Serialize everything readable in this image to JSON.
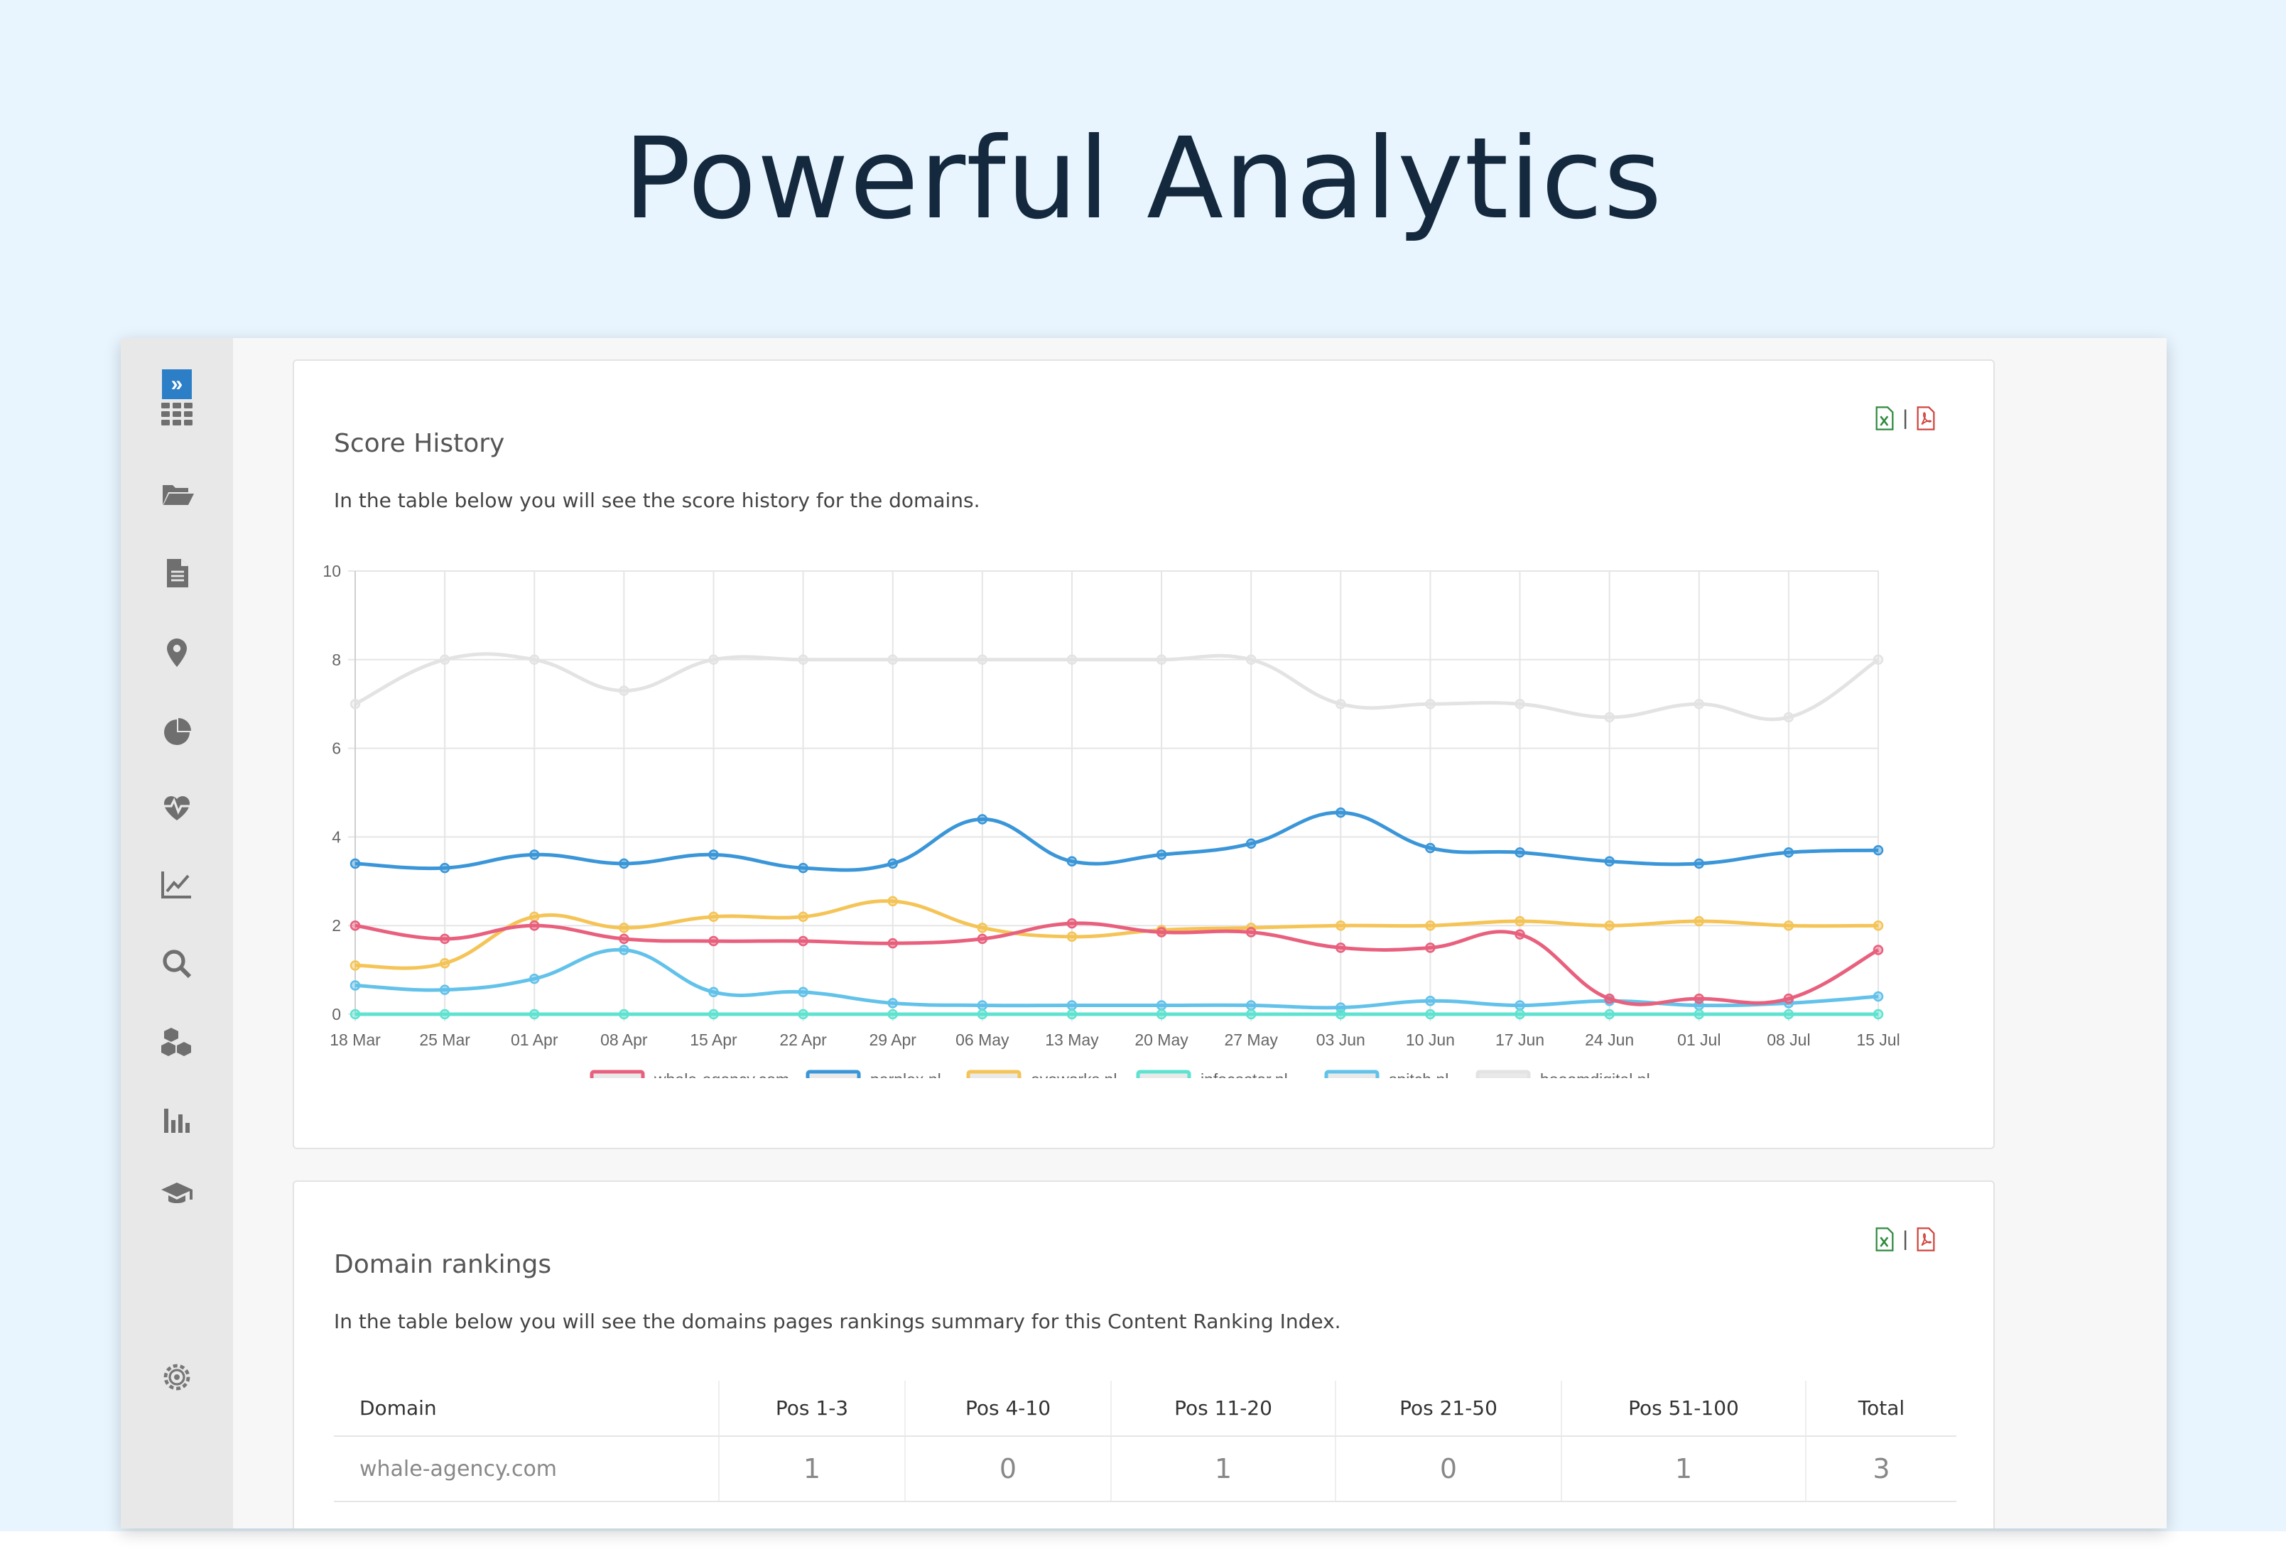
{
  "hero": {
    "title": "Powerful Analytics"
  },
  "sidebar": {
    "items": [
      "expand-icon",
      "dashboard-grid-icon",
      "folder-open-icon",
      "document-icon",
      "location-pin-icon",
      "pie-chart-icon",
      "heartbeat-icon",
      "line-trend-icon",
      "search-icon",
      "cubes-icon",
      "bar-chart-icon",
      "graduation-cap-icon",
      "settings-gear-icon"
    ]
  },
  "score_history": {
    "title": "Score History",
    "description": "In the table below you will see the score history for the domains.",
    "export_separator": "|"
  },
  "chart_data": {
    "type": "line",
    "title": "Score History",
    "xlabel": "",
    "ylabel": "",
    "ylim": [
      0,
      10
    ],
    "yticks": [
      "0",
      "2",
      "4",
      "6",
      "8",
      "10"
    ],
    "grid": true,
    "legend_position": "bottom",
    "categories": [
      "18 Mar",
      "25 Mar",
      "01 Apr",
      "08 Apr",
      "15 Apr",
      "22 Apr",
      "29 Apr",
      "06 May",
      "13 May",
      "20 May",
      "27 May",
      "03 Jun",
      "10 Jun",
      "17 Jun",
      "24 Jun",
      "01 Jul",
      "08 Jul",
      "15 Jul"
    ],
    "series": [
      {
        "name": "whale-agency.com",
        "color": "#e8607d",
        "values": [
          2.0,
          1.7,
          2.0,
          1.7,
          1.65,
          1.65,
          1.6,
          1.7,
          2.05,
          1.85,
          1.85,
          1.5,
          1.5,
          1.8,
          0.35,
          0.35,
          0.35,
          1.45
        ]
      },
      {
        "name": "perplex.nl",
        "color": "#3a96d8",
        "values": [
          3.4,
          3.3,
          3.6,
          3.4,
          3.6,
          3.3,
          3.4,
          4.4,
          3.45,
          3.6,
          3.85,
          4.55,
          3.75,
          3.65,
          3.45,
          3.4,
          3.65,
          3.7
        ]
      },
      {
        "name": "evoworks.nl",
        "color": "#f5c457",
        "values": [
          1.1,
          1.15,
          2.2,
          1.95,
          2.2,
          2.2,
          2.55,
          1.95,
          1.75,
          1.9,
          1.95,
          2.0,
          2.0,
          2.1,
          2.0,
          2.1,
          2.0,
          2.0
        ]
      },
      {
        "name": "infocaster.nl",
        "color": "#5fe3d0",
        "values": [
          0,
          0,
          0,
          0,
          0,
          0,
          0,
          0,
          0,
          0,
          0,
          0,
          0,
          0,
          0,
          0,
          0,
          0
        ]
      },
      {
        "name": "spitch.nl",
        "color": "#62c2ea",
        "values": [
          0.65,
          0.55,
          0.8,
          1.45,
          0.5,
          0.5,
          0.25,
          0.2,
          0.2,
          0.2,
          0.2,
          0.15,
          0.3,
          0.2,
          0.3,
          0.2,
          0.25,
          0.4
        ]
      },
      {
        "name": "booomdigital.nl",
        "color": "#e3e3e3",
        "values": [
          7.0,
          8.0,
          8.0,
          7.3,
          8.0,
          8.0,
          8.0,
          8.0,
          8.0,
          8.0,
          8.0,
          7.0,
          7.0,
          7.0,
          6.7,
          7.0,
          6.7,
          8.0
        ]
      }
    ]
  },
  "domain_rankings": {
    "title": "Domain rankings",
    "description": "In the table below you will see the domains pages rankings summary for this Content Ranking Index.",
    "export_separator": "|",
    "columns": [
      "Domain",
      "Pos 1-3",
      "Pos 4-10",
      "Pos 11-20",
      "Pos 21-50",
      "Pos 51-100",
      "Total"
    ],
    "rows": [
      [
        "whale-agency.com",
        "1",
        "0",
        "1",
        "0",
        "1",
        "3"
      ]
    ]
  }
}
